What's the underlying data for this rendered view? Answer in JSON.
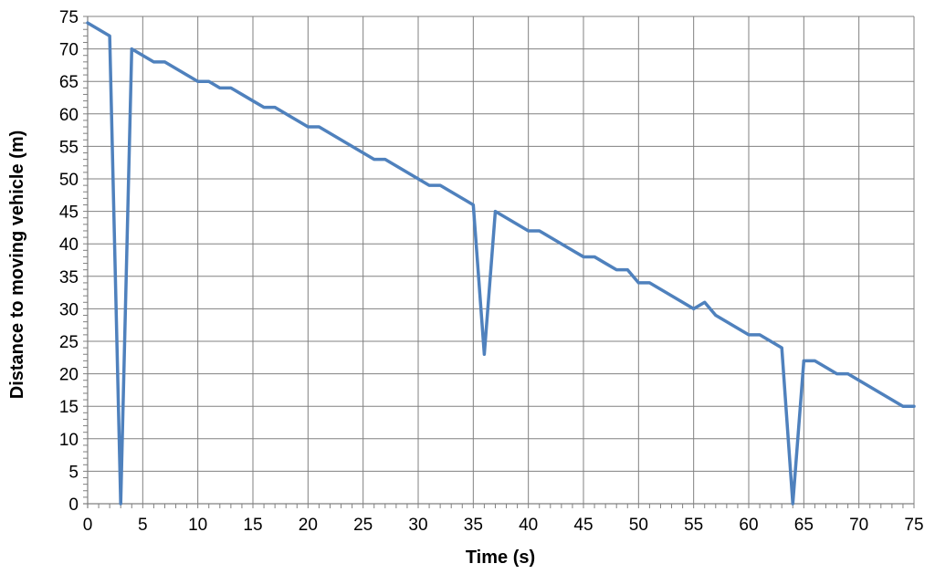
{
  "chart_data": {
    "type": "line",
    "title": "",
    "xlabel": "Time (s)",
    "ylabel": "Distance to moving vehicle (m)",
    "xlim": [
      0,
      75
    ],
    "ylim": [
      0,
      75
    ],
    "x_ticks": [
      0,
      5,
      10,
      15,
      20,
      25,
      30,
      35,
      40,
      45,
      50,
      55,
      60,
      65,
      70,
      75
    ],
    "y_ticks": [
      0,
      5,
      10,
      15,
      20,
      25,
      30,
      35,
      40,
      45,
      50,
      55,
      60,
      65,
      70,
      75
    ],
    "grid": true,
    "legend": "none",
    "series": [
      {
        "color": "#4f81bd",
        "x": [
          0,
          2,
          3,
          4,
          5,
          6,
          7,
          8,
          9,
          10,
          11,
          12,
          13,
          14,
          15,
          16,
          17,
          18,
          19,
          20,
          21,
          22,
          23,
          24,
          25,
          26,
          27,
          28,
          29,
          30,
          31,
          32,
          33,
          34,
          35,
          36,
          37,
          38,
          39,
          40,
          41,
          42,
          43,
          44,
          45,
          46,
          47,
          48,
          49,
          50,
          51,
          52,
          53,
          54,
          55,
          56,
          57,
          58,
          59,
          60,
          61,
          62,
          63,
          64,
          65,
          66,
          67,
          68,
          69,
          70,
          71,
          72,
          73,
          74,
          75
        ],
        "y": [
          74,
          72,
          0,
          70,
          69,
          68,
          68,
          67,
          66,
          65,
          65,
          64,
          64,
          63,
          62,
          61,
          61,
          60,
          59,
          58,
          58,
          57,
          56,
          55,
          54,
          53,
          53,
          52,
          51,
          50,
          49,
          49,
          48,
          47,
          46,
          23,
          45,
          44,
          43,
          42,
          42,
          41,
          40,
          39,
          38,
          38,
          37,
          36,
          36,
          34,
          34,
          33,
          32,
          31,
          30,
          31,
          29,
          28,
          27,
          26,
          26,
          25,
          24,
          0,
          22,
          22,
          21,
          20,
          20,
          19,
          18,
          17,
          16,
          15,
          15
        ]
      }
    ]
  }
}
